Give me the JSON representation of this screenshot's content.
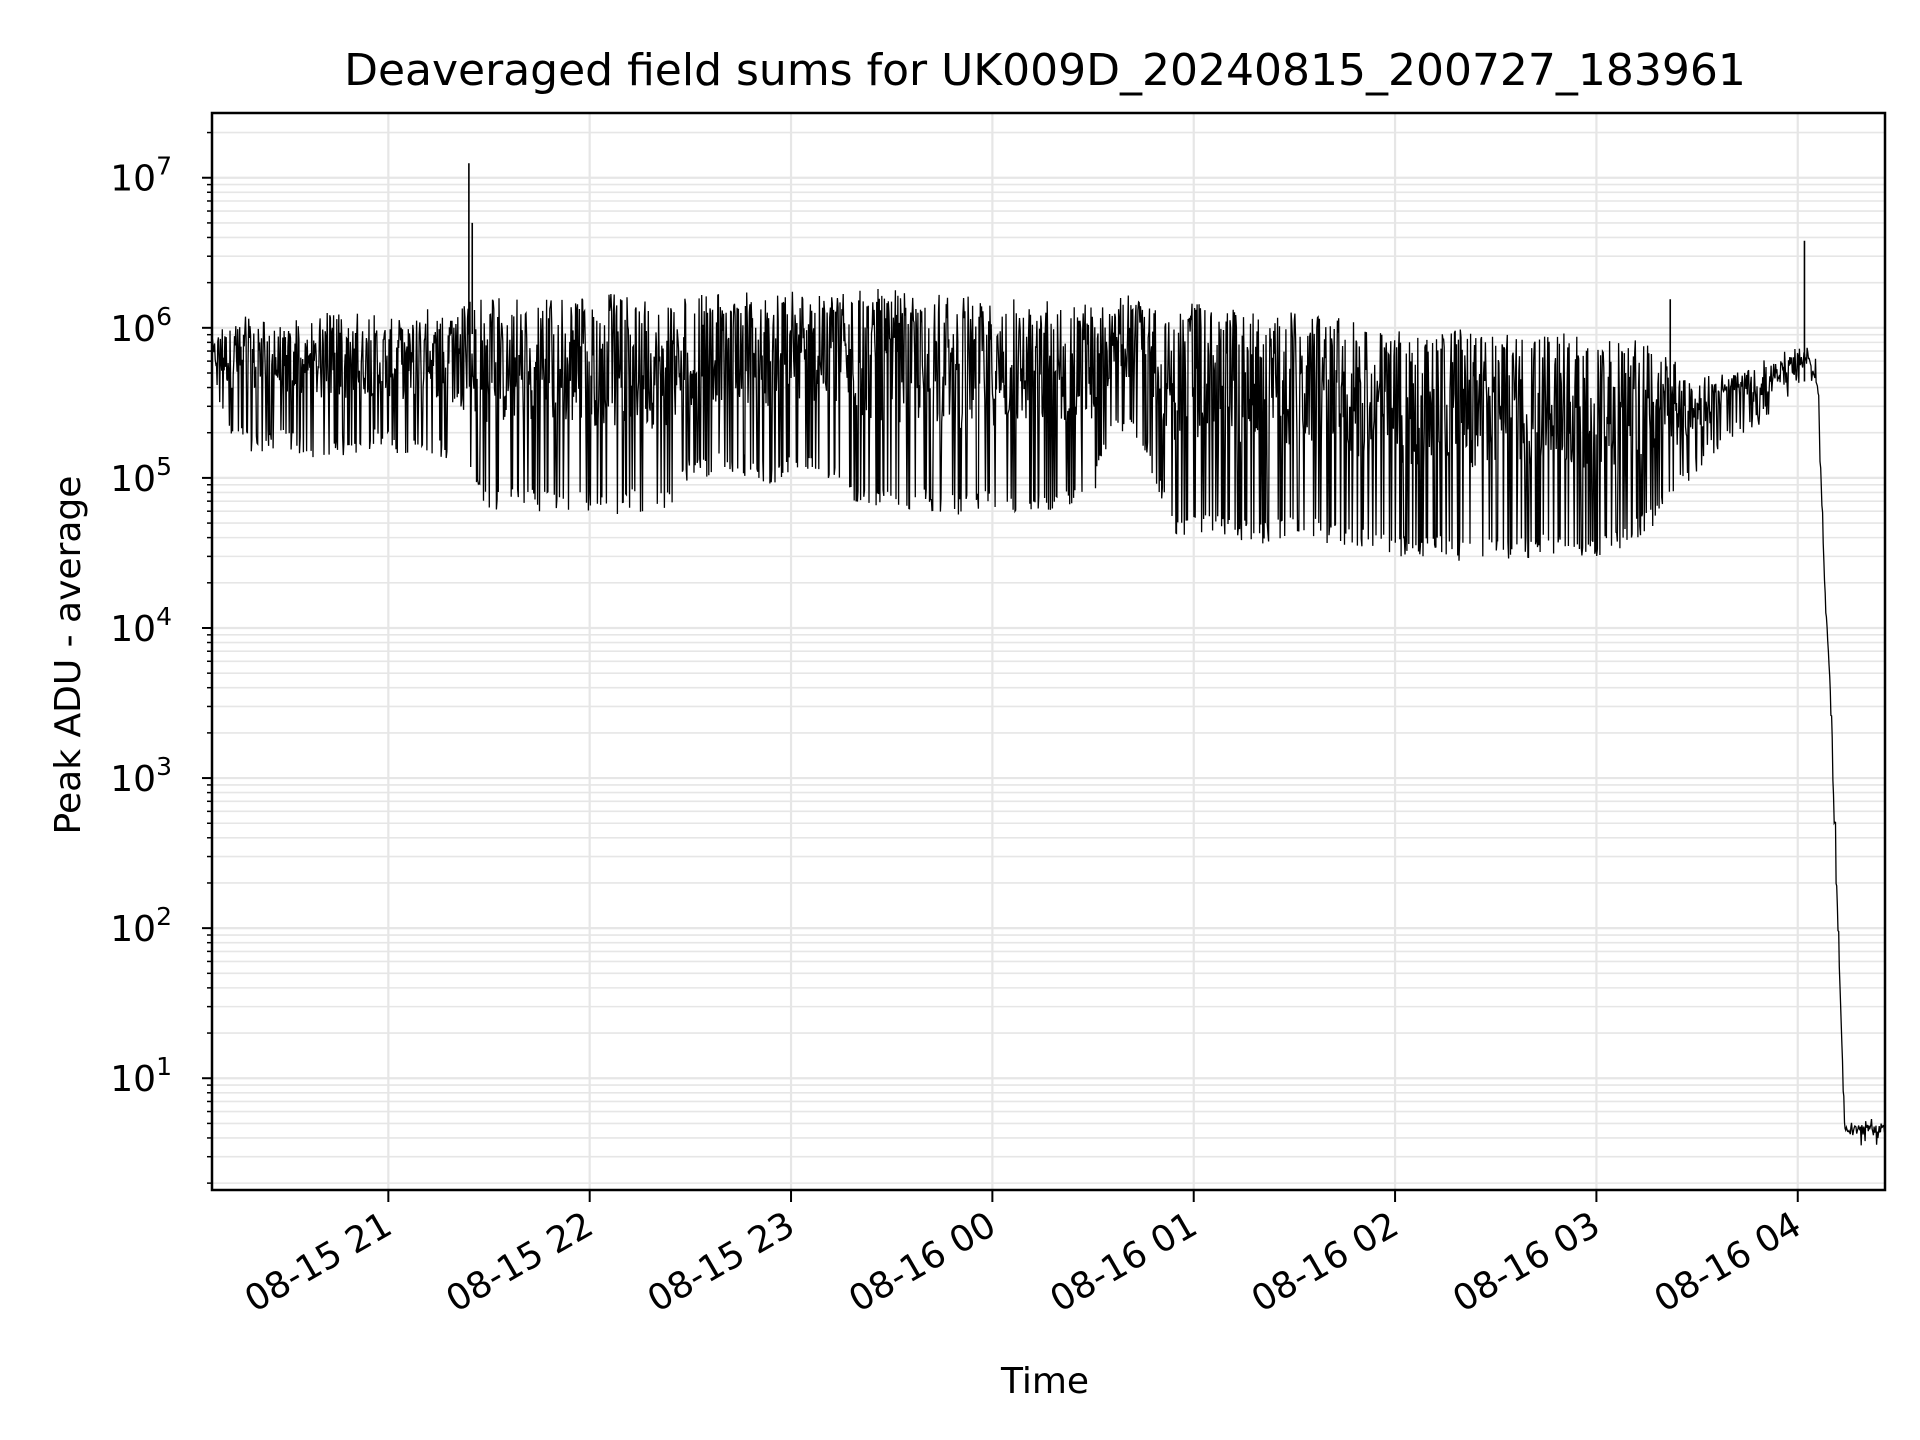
{
  "chart_data": {
    "type": "line",
    "title": "Deaveraged field sums for UK009D_20240815_200727_183961",
    "xlabel": "Time",
    "ylabel": "Peak ADU - average",
    "yscale": "log",
    "ylim": [
      1.8,
      27000000
    ],
    "xlim": [
      "2024-08-15 20:07:27",
      "2024-08-16 04:26:00"
    ],
    "grid": true,
    "line_color": "#000000",
    "grid_color": "#e6e6e6",
    "x_ticks": [
      {
        "value": "2024-08-15 21:00",
        "label": "08-15 21"
      },
      {
        "value": "2024-08-15 22:00",
        "label": "08-15 22"
      },
      {
        "value": "2024-08-15 23:00",
        "label": "08-15 23"
      },
      {
        "value": "2024-08-16 00:00",
        "label": "08-16 00"
      },
      {
        "value": "2024-08-16 01:00",
        "label": "08-16 01"
      },
      {
        "value": "2024-08-16 02:00",
        "label": "08-16 02"
      },
      {
        "value": "2024-08-16 03:00",
        "label": "08-16 03"
      },
      {
        "value": "2024-08-16 04:00",
        "label": "08-16 04"
      }
    ],
    "y_ticks": [
      {
        "value": 10,
        "base": "10",
        "exp": "1"
      },
      {
        "value": 100,
        "base": "10",
        "exp": "2"
      },
      {
        "value": 1000,
        "base": "10",
        "exp": "3"
      },
      {
        "value": 10000,
        "base": "10",
        "exp": "4"
      },
      {
        "value": 100000,
        "base": "10",
        "exp": "5"
      },
      {
        "value": 1000000,
        "base": "10",
        "exp": "6"
      },
      {
        "value": 10000000,
        "base": "10",
        "exp": "7"
      }
    ],
    "series": [
      {
        "x": [
          "2024-08-15 20:07:27",
          "2024-08-15 20:12",
          "2024-08-15 20:18",
          "2024-08-15 20:24",
          "2024-08-15 20:30",
          "2024-08-15 20:36",
          "2024-08-15 20:42",
          "2024-08-15 20:48",
          "2024-08-15 20:54",
          "2024-08-15 21:00",
          "2024-08-15 21:06",
          "2024-08-15 21:12",
          "2024-08-15 21:18",
          "2024-08-15 21:24",
          "2024-08-15 21:30",
          "2024-08-15 21:36",
          "2024-08-15 21:42",
          "2024-08-15 21:48",
          "2024-08-15 21:54",
          "2024-08-15 22:00",
          "2024-08-15 22:06",
          "2024-08-15 22:12",
          "2024-08-15 22:18",
          "2024-08-15 22:24",
          "2024-08-15 22:30",
          "2024-08-15 22:36",
          "2024-08-15 22:42",
          "2024-08-15 22:48",
          "2024-08-15 22:54",
          "2024-08-15 23:00",
          "2024-08-15 23:06",
          "2024-08-15 23:12",
          "2024-08-15 23:18",
          "2024-08-15 23:24",
          "2024-08-15 23:30",
          "2024-08-15 23:36",
          "2024-08-15 23:42",
          "2024-08-15 23:48",
          "2024-08-15 23:54",
          "2024-08-16 00:00",
          "2024-08-16 00:06",
          "2024-08-16 00:12",
          "2024-08-16 00:18",
          "2024-08-16 00:24",
          "2024-08-16 00:30",
          "2024-08-16 00:36",
          "2024-08-16 00:42",
          "2024-08-16 00:48",
          "2024-08-16 00:54",
          "2024-08-16 01:00",
          "2024-08-16 01:06",
          "2024-08-16 01:12",
          "2024-08-16 01:18",
          "2024-08-16 01:24",
          "2024-08-16 01:30",
          "2024-08-16 01:36",
          "2024-08-16 01:42",
          "2024-08-16 01:48",
          "2024-08-16 01:54",
          "2024-08-16 02:00",
          "2024-08-16 02:06",
          "2024-08-16 02:12",
          "2024-08-16 02:18",
          "2024-08-16 02:24",
          "2024-08-16 02:30",
          "2024-08-16 02:36",
          "2024-08-16 02:42",
          "2024-08-16 02:48",
          "2024-08-16 02:54",
          "2024-08-16 03:00",
          "2024-08-16 03:06",
          "2024-08-16 03:12",
          "2024-08-16 03:18",
          "2024-08-16 03:24",
          "2024-08-16 03:30",
          "2024-08-16 03:36",
          "2024-08-16 03:42",
          "2024-08-16 03:48",
          "2024-08-16 03:54",
          "2024-08-16 04:00",
          "2024-08-16 04:03",
          "2024-08-16 04:06",
          "2024-08-16 04:08",
          "2024-08-16 04:10",
          "2024-08-16 04:12",
          "2024-08-16 04:14",
          "2024-08-16 04:26"
        ],
        "high": [
          900000,
          1200000,
          1300000,
          1100000,
          1200000,
          1100000,
          1300000,
          1200000,
          1300000,
          1200000,
          1300000,
          1400000,
          1200000,
          1500000,
          1600000,
          1600000,
          1500000,
          1600000,
          1600000,
          1600000,
          1700000,
          1600000,
          1600000,
          1500000,
          1600000,
          1700000,
          1800000,
          1700000,
          1700000,
          1800000,
          1700000,
          1700000,
          1800000,
          1900000,
          1800000,
          1700000,
          1700000,
          1600000,
          1700000,
          1600000,
          1600000,
          1500000,
          1600000,
          1500000,
          1600000,
          1600000,
          1700000,
          1700000,
          1600000,
          1500000,
          1300000,
          1400000,
          1300000,
          1200000,
          1300000,
          1300000,
          1200000,
          1100000,
          1000000,
          1000000,
          900000,
          950000,
          1000000,
          900000,
          950000,
          900000,
          850000,
          1000000,
          900000,
          850000,
          800000,
          900000,
          700000,
          600000,
          450000,
          500000,
          550000,
          600000,
          650000,
          800000,
          700000,
          400000,
          20000,
          3000,
          100,
          5,
          5
        ],
        "low": [
          400000,
          200000,
          150000,
          150000,
          150000,
          140000,
          130000,
          140000,
          150000,
          150000,
          130000,
          150000,
          120000,
          90000,
          60000,
          60000,
          60000,
          60000,
          55000,
          60000,
          55000,
          60000,
          55000,
          60000,
          100000,
          100000,
          110000,
          100000,
          90000,
          100000,
          100000,
          90000,
          70000,
          60000,
          60000,
          60000,
          60000,
          55000,
          55000,
          60000,
          55000,
          60000,
          55000,
          60000,
          70000,
          200000,
          200000,
          100000,
          40000,
          40000,
          40000,
          40000,
          35000,
          38000,
          40000,
          40000,
          35000,
          33000,
          32000,
          30000,
          28000,
          30000,
          28000,
          28000,
          30000,
          28000,
          30000,
          30000,
          30000,
          30000,
          32000,
          38000,
          50000,
          70000,
          110000,
          150000,
          190000,
          220000,
          270000,
          400000,
          600000,
          400000,
          20000,
          3000,
          100,
          4,
          4
        ]
      }
    ],
    "annotations_spikes": [
      {
        "x": "2024-08-15 21:24",
        "y": 12500000
      },
      {
        "x": "2024-08-15 21:25",
        "y": 5000000
      },
      {
        "x": "2024-08-16 04:02",
        "y": 3800000
      },
      {
        "x": "2024-08-16 03:22",
        "y": 1550000
      }
    ]
  }
}
